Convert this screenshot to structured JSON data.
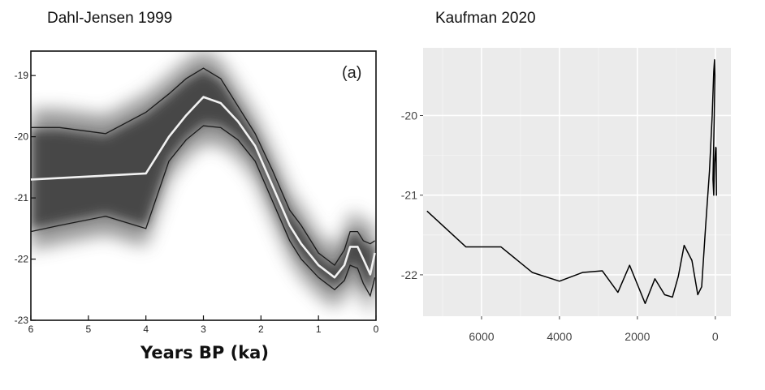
{
  "chart_data": [
    {
      "type": "line",
      "title": "Dahl-Jensen 1999",
      "panel_label": "(a)",
      "xlabel": "Years BP (ka)",
      "ylabel": "",
      "x_reversed": true,
      "xlim": [
        0,
        6
      ],
      "ylim": [
        -23,
        -18.6
      ],
      "xticks": [
        6,
        5,
        4,
        3,
        2,
        1,
        0
      ],
      "yticks": [
        -19,
        -20,
        -21,
        -22,
        -23
      ],
      "series": [
        {
          "role": "central",
          "x": [
            6,
            4,
            3.6,
            3.3,
            3.0,
            2.7,
            2.4,
            2.1,
            1.8,
            1.5,
            1.3,
            1.0,
            0.72,
            0.55,
            0.45,
            0.32,
            0.22,
            0.1,
            0.02
          ],
          "y": [
            -20.7,
            -20.6,
            -20.0,
            -19.65,
            -19.35,
            -19.45,
            -19.75,
            -20.15,
            -20.8,
            -21.45,
            -21.75,
            -22.1,
            -22.3,
            -22.1,
            -21.8,
            -21.8,
            -22.0,
            -22.25,
            -21.9
          ]
        },
        {
          "role": "upper",
          "x": [
            6,
            5.5,
            4.7,
            4.0,
            3.6,
            3.3,
            3.0,
            2.7,
            2.4,
            2.1,
            1.8,
            1.5,
            1.3,
            1.0,
            0.72,
            0.55,
            0.45,
            0.32,
            0.22,
            0.1,
            0.02
          ],
          "y": [
            -19.85,
            -19.85,
            -19.95,
            -19.6,
            -19.3,
            -19.05,
            -18.88,
            -19.05,
            -19.5,
            -19.95,
            -20.55,
            -21.2,
            -21.45,
            -21.9,
            -22.1,
            -21.85,
            -21.55,
            -21.55,
            -21.7,
            -21.75,
            -21.7
          ]
        },
        {
          "role": "lower",
          "x": [
            6,
            5.5,
            4.7,
            4.0,
            3.6,
            3.3,
            3.0,
            2.7,
            2.4,
            2.1,
            1.8,
            1.5,
            1.3,
            1.0,
            0.72,
            0.55,
            0.45,
            0.32,
            0.22,
            0.1,
            0.02
          ],
          "y": [
            -21.55,
            -21.45,
            -21.3,
            -21.5,
            -20.4,
            -20.05,
            -19.82,
            -19.85,
            -20.05,
            -20.4,
            -21.05,
            -21.7,
            -22.0,
            -22.3,
            -22.5,
            -22.35,
            -22.1,
            -22.15,
            -22.4,
            -22.6,
            -22.3
          ]
        }
      ]
    },
    {
      "type": "line",
      "title": "Kaufman 2020",
      "xlabel": "",
      "ylabel": "",
      "x_reversed": true,
      "xlim": [
        -400,
        7500
      ],
      "ylim": [
        -22.52,
        -19.15
      ],
      "xticks": [
        6000,
        4000,
        2000,
        0
      ],
      "yticks": [
        -20,
        -21,
        -22
      ],
      "grid": true,
      "series": [
        {
          "x": [
            7400,
            6400,
            5500,
            4700,
            4000,
            3400,
            2900,
            2500,
            2200,
            1800,
            1550,
            1300,
            1100,
            950,
            800,
            600,
            450,
            350,
            250,
            150,
            80,
            40,
            20,
            10,
            30,
            60,
            40,
            20,
            5,
            -10,
            -20,
            -30,
            -20
          ],
          "y": [
            -21.2,
            -21.65,
            -21.65,
            -21.97,
            -22.08,
            -21.97,
            -21.95,
            -22.22,
            -21.88,
            -22.36,
            -22.05,
            -22.25,
            -22.28,
            -22.02,
            -21.63,
            -21.82,
            -22.25,
            -22.15,
            -21.4,
            -20.7,
            -20.0,
            -19.45,
            -19.3,
            -19.5,
            -20.1,
            -20.8,
            -21.0,
            -20.6,
            -20.5,
            -20.4,
            -20.6,
            -21.0,
            -20.4
          ]
        }
      ]
    }
  ]
}
